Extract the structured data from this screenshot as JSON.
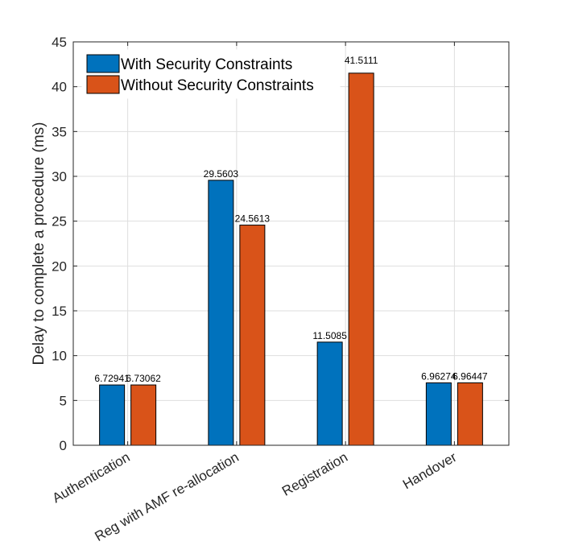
{
  "chart_data": {
    "type": "bar",
    "categories": [
      "Authentication",
      "Reg with AMF re-allocation",
      "Registration",
      "Handover"
    ],
    "series": [
      {
        "name": "With Security Constraints",
        "values": [
          6.72941,
          29.5603,
          11.5085,
          6.96274
        ],
        "labels": [
          "6.72941",
          "29.5603",
          "11.5085",
          "6.96274"
        ],
        "color": "#0072BD"
      },
      {
        "name": "Without Security Constraints",
        "values": [
          6.73062,
          24.5613,
          41.5111,
          6.96447
        ],
        "labels": [
          "6.73062",
          "24.5613",
          "41.5111",
          "6.96447"
        ],
        "color": "#D95319"
      }
    ],
    "title": "",
    "xlabel": "",
    "ylabel": "Delay to complete a procedure (ms)",
    "ylim": [
      0,
      45
    ],
    "yticks": [
      0,
      5,
      10,
      15,
      20,
      25,
      30,
      35,
      40,
      45
    ],
    "grid": true,
    "legend_position": "top-left"
  }
}
